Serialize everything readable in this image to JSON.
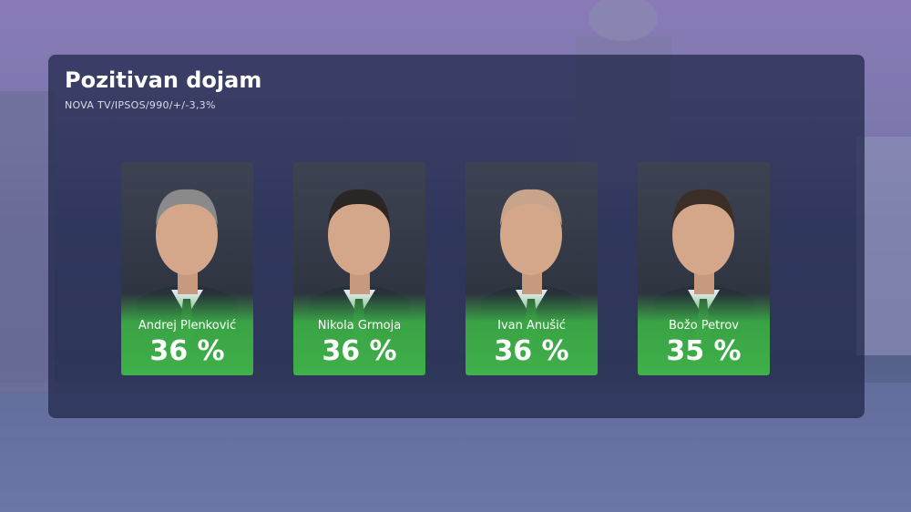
{
  "title": "Pozitivan dojam",
  "subtitle": "NOVA TV/IPSOS/990/+/-3,3%",
  "candidates": [
    {
      "name": "Andrej Plenković",
      "result": "36 %"
    },
    {
      "name": "Nikola Grmoja",
      "result": "36 %"
    },
    {
      "name": "Ivan Anušić",
      "result": "36 %"
    },
    {
      "name": "Božo Petrov",
      "result": "35 %"
    }
  ]
}
